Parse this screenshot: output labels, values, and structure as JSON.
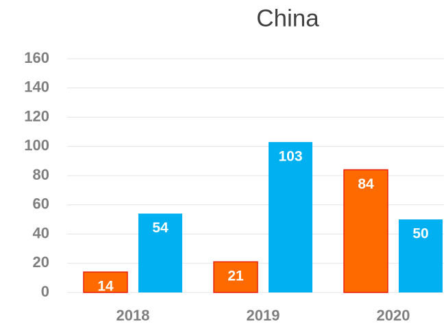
{
  "chart_data": {
    "type": "bar",
    "title": "China",
    "categories": [
      "2018",
      "2019",
      "2020"
    ],
    "series": [
      {
        "color": "#ff6a00",
        "values": [
          14,
          21,
          84
        ]
      },
      {
        "color": "#00b0f0",
        "values": [
          54,
          103,
          50
        ]
      }
    ],
    "ylim": [
      0,
      160
    ],
    "yticks": [
      0,
      20,
      40,
      60,
      80,
      100,
      120,
      140,
      160
    ],
    "grid": true
  }
}
